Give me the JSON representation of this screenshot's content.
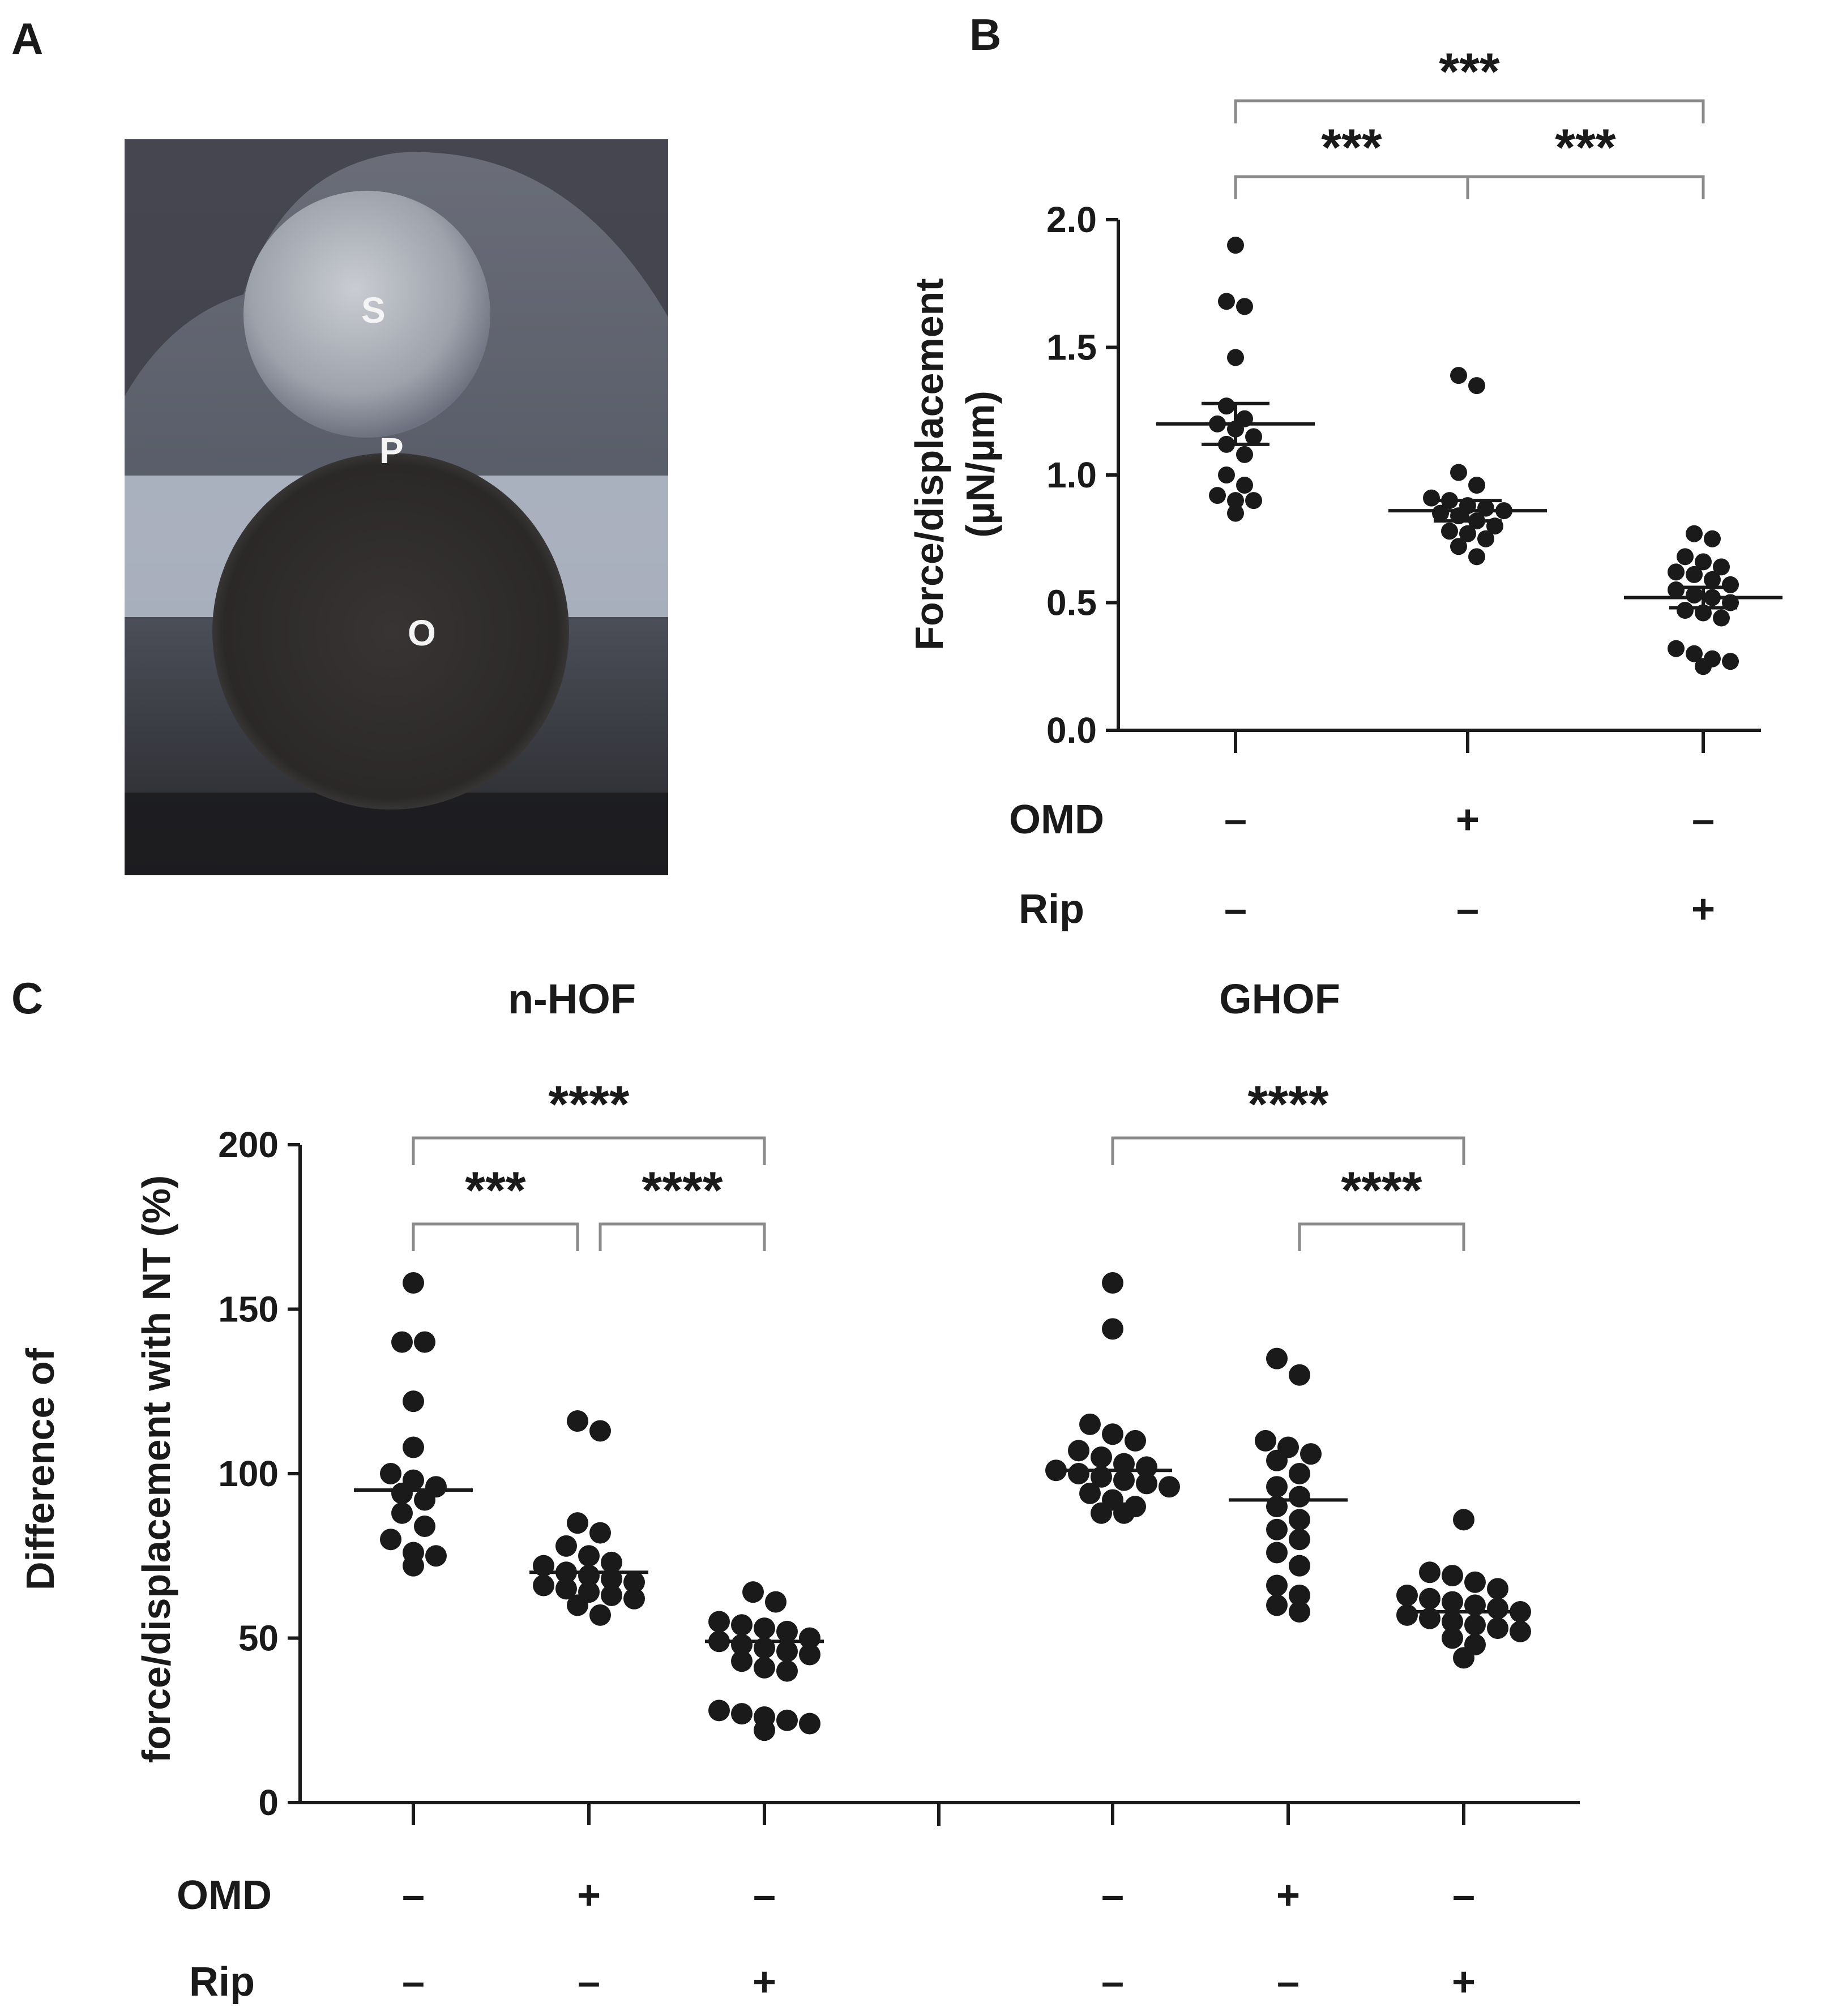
{
  "panel_labels": {
    "a": "A",
    "b": "B",
    "c": "C"
  },
  "photo": {
    "labels": {
      "s": "S",
      "p": "P",
      "o": "O"
    },
    "colors": {
      "background": "#5d6270",
      "top_sphere": "#9ba0a8",
      "bottom_sphere": "#2f2c2c",
      "slab": "#b9bfce"
    }
  },
  "chart_data": [
    {
      "panel": "B",
      "type": "scatter",
      "ylabel_line1": "Force/displacement",
      "ylabel_line2": "(µN/µm)",
      "ylim": [
        0,
        2.0
      ],
      "yticks": [
        0.0,
        0.5,
        1.0,
        1.5,
        2.0
      ],
      "ytick_labels": [
        "0.0",
        "0.5",
        "1.0",
        "1.5",
        "2.0"
      ],
      "row_labels": [
        "OMD",
        "Rip"
      ],
      "groups": [
        {
          "omd": "–",
          "rip": "–",
          "mean": 1.2,
          "sem": 0.08,
          "values": [
            1.9,
            1.68,
            1.66,
            1.46,
            1.27,
            1.22,
            1.2,
            1.18,
            1.15,
            1.12,
            1.08,
            1.0,
            0.96,
            0.92,
            0.9,
            0.9,
            0.85
          ]
        },
        {
          "omd": "+",
          "rip": "–",
          "mean": 0.86,
          "sem": 0.04,
          "values": [
            1.39,
            1.35,
            1.01,
            0.96,
            0.91,
            0.9,
            0.88,
            0.87,
            0.86,
            0.85,
            0.84,
            0.82,
            0.8,
            0.78,
            0.77,
            0.75,
            0.72,
            0.68
          ]
        },
        {
          "omd": "–",
          "rip": "+",
          "mean": 0.52,
          "sem": 0.04,
          "values": [
            0.77,
            0.75,
            0.68,
            0.66,
            0.64,
            0.62,
            0.61,
            0.59,
            0.57,
            0.55,
            0.53,
            0.52,
            0.5,
            0.47,
            0.46,
            0.44,
            0.32,
            0.3,
            0.28,
            0.27,
            0.25
          ]
        }
      ],
      "significance": [
        {
          "from": 0,
          "to": 2,
          "label": "***",
          "level": "top"
        },
        {
          "from": 0,
          "to": 1,
          "label": "***",
          "level": "low"
        },
        {
          "from": 1,
          "to": 2,
          "label": "***",
          "level": "low"
        }
      ]
    },
    {
      "panel": "C",
      "type": "scatter",
      "ylabel_line1": "Difference of",
      "ylabel_line2": "force/displacement with NT (%)",
      "ylim": [
        0,
        200
      ],
      "yticks": [
        0,
        50,
        100,
        150,
        200
      ],
      "ytick_labels": [
        "0",
        "50",
        "100",
        "150",
        "200"
      ],
      "row_labels": [
        "OMD",
        "Rip"
      ],
      "group_titles": [
        "n-HOF",
        "GHOF"
      ],
      "groups": [
        {
          "set": "n-HOF",
          "omd": "–",
          "rip": "–",
          "mean": 95,
          "values": [
            158,
            140,
            140,
            122,
            108,
            100,
            98,
            96,
            94,
            92,
            88,
            84,
            80,
            76,
            75,
            72
          ]
        },
        {
          "set": "n-HOF",
          "omd": "+",
          "rip": "–",
          "mean": 70,
          "values": [
            116,
            113,
            85,
            82,
            78,
            75,
            73,
            72,
            70,
            69,
            68,
            67,
            66,
            65,
            64,
            63,
            62,
            60,
            57
          ]
        },
        {
          "set": "n-HOF",
          "omd": "–",
          "rip": "+",
          "mean": 49,
          "values": [
            64,
            61,
            55,
            54,
            53,
            52,
            50,
            49,
            48,
            47,
            46,
            45,
            43,
            41,
            40,
            28,
            27,
            26,
            25,
            24,
            22
          ]
        },
        {
          "set": "GHOF",
          "omd": "–",
          "rip": "–",
          "mean": 101,
          "values": [
            158,
            144,
            115,
            112,
            110,
            107,
            105,
            103,
            102,
            101,
            100,
            99,
            98,
            97,
            96,
            94,
            92,
            90,
            88,
            88
          ]
        },
        {
          "set": "GHOF",
          "omd": "+",
          "rip": "–",
          "mean": 92,
          "values": [
            135,
            130,
            110,
            108,
            106,
            104,
            100,
            96,
            93,
            90,
            86,
            83,
            80,
            76,
            72,
            66,
            63,
            60,
            58
          ]
        },
        {
          "set": "GHOF",
          "omd": "–",
          "rip": "+",
          "mean": 58,
          "values": [
            86,
            70,
            69,
            67,
            65,
            63,
            62,
            61,
            60,
            59,
            58,
            57,
            56,
            55,
            54,
            53,
            52,
            50,
            48,
            44
          ]
        }
      ],
      "significance": [
        {
          "from": 0,
          "to": 2,
          "label": "****",
          "level": "top"
        },
        {
          "from": 0,
          "to": 1,
          "label": "***",
          "level": "low"
        },
        {
          "from": 1,
          "to": 2,
          "label": "****",
          "level": "low"
        },
        {
          "from": 3,
          "to": 5,
          "label": "****",
          "level": "top"
        },
        {
          "from": 4,
          "to": 5,
          "label": "****",
          "level": "low"
        }
      ]
    }
  ]
}
